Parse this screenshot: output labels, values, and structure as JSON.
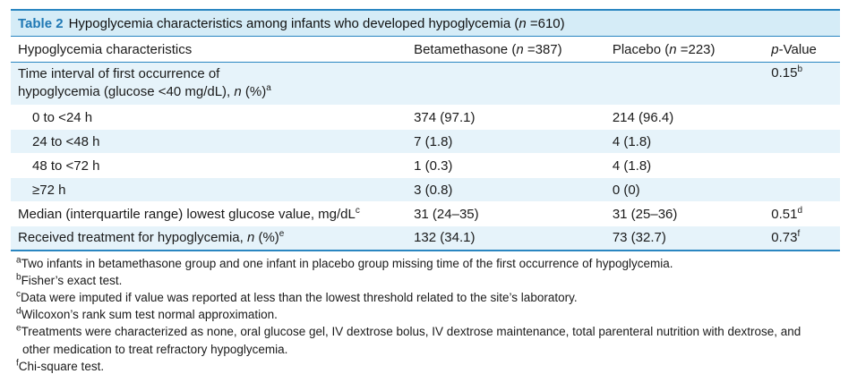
{
  "title": {
    "label": "Table 2",
    "text_before": "Hypoglycemia characteristics among infants who developed hypoglycemia (",
    "n_italic": "n",
    "text_after": " =610)"
  },
  "header": {
    "col1": "Hypoglycemia characteristics",
    "col2_before": "Betamethasone (",
    "col2_n": "n",
    "col2_after": " =387)",
    "col3_before": "Placebo (",
    "col3_n": "n",
    "col3_after": " =223)",
    "col4_p": "p",
    "col4_after": "-Value"
  },
  "rows": [
    {
      "label_line1": "Time interval of first occurrence of",
      "label_line2": "hypoglycemia (glucose <40 mg/dL), ",
      "label_n": "n",
      "label_pct": " (%)",
      "label_sup": "a",
      "betamethasone": "",
      "placebo": "",
      "p_value": "0.15",
      "p_sup": "b"
    },
    {
      "label": "0 to <24 h",
      "betamethasone": "374 (97.1)",
      "placebo": "214 (96.4)",
      "p_value": ""
    },
    {
      "label": "24 to <48 h",
      "betamethasone": "7 (1.8)",
      "placebo": "4 (1.8)",
      "p_value": ""
    },
    {
      "label": "48 to <72 h",
      "betamethasone": "1 (0.3)",
      "placebo": "4 (1.8)",
      "p_value": ""
    },
    {
      "label": "≥72 h",
      "betamethasone": "3 (0.8)",
      "placebo": "0 (0)",
      "p_value": ""
    },
    {
      "label": "Median (interquartile range) lowest glucose value, mg/dL",
      "label_sup": "c",
      "betamethasone": "31 (24–35)",
      "placebo": "31 (25–36)",
      "p_value": "0.51",
      "p_sup": "d"
    },
    {
      "label_before": "Received treatment for hypoglycemia, ",
      "label_n": "n",
      "label_pct": " (%)",
      "label_sup": "e",
      "betamethasone": "132 (34.1)",
      "placebo": "73 (32.7)",
      "p_value": "0.73",
      "p_sup": "f"
    }
  ],
  "footnotes": [
    {
      "mark": "a",
      "text": "Two infants in betamethasone group and one infant in placebo group missing time of the first occurrence of hypoglycemia."
    },
    {
      "mark": "b",
      "text": "Fisher’s exact test."
    },
    {
      "mark": "c",
      "text": "Data were imputed if value was reported at less than the lowest threshold related to the site’s laboratory."
    },
    {
      "mark": "d",
      "text": "Wilcoxon’s rank sum test normal approximation."
    },
    {
      "mark": "e",
      "text": "Treatments were characterized as none, oral glucose gel, IV dextrose bolus, IV dextrose maintenance, total parenteral nutrition with dextrose, and",
      "continuation": "other medication to treat refractory hypoglycemia."
    },
    {
      "mark": "f",
      "text": "Chi-square test."
    }
  ],
  "colors": {
    "accent": "#2a86c1",
    "title_bg": "#d5ecf7",
    "row_shade": "#e6f3fa",
    "label_blue": "#1f78b4"
  }
}
